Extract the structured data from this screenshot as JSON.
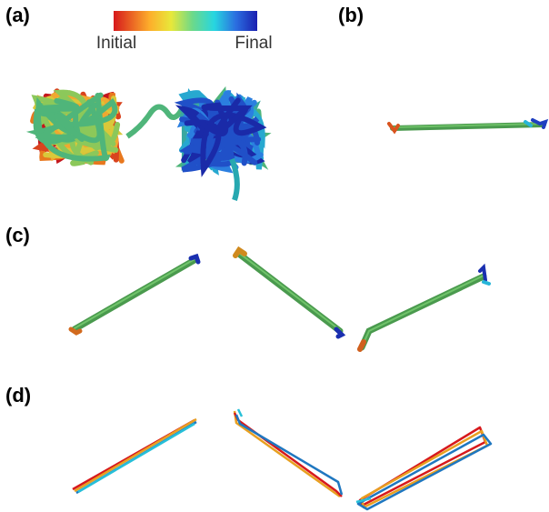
{
  "panels": [
    {
      "label": "(a)"
    },
    {
      "label": "(b)"
    },
    {
      "label": "(c)"
    },
    {
      "label": "(d)"
    }
  ],
  "colorbar": {
    "start_label": "Initial",
    "end_label": "Final"
  }
}
